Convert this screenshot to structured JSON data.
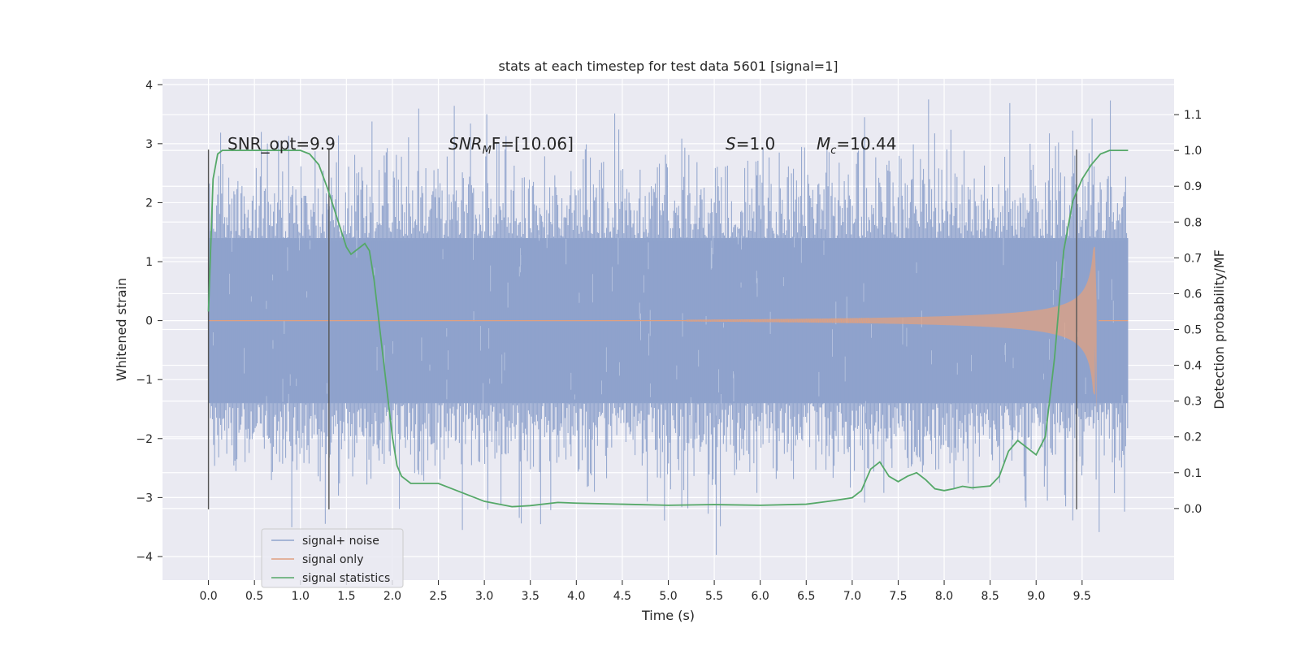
{
  "chart_data": {
    "type": "line",
    "title": "stats at each timestep for test data 5601 [signal=1]",
    "xlabel": "Time (s)",
    "ylabel": "Whitened strain",
    "y2label": "Detection probability/MF",
    "xlim": [
      -0.5,
      10.5
    ],
    "ylim": [
      -4.4,
      4.1
    ],
    "y2lim": [
      -0.2,
      1.2
    ],
    "x_ticks": [
      "0.0",
      "0.5",
      "1.0",
      "1.5",
      "2.0",
      "2.5",
      "3.0",
      "3.5",
      "4.0",
      "4.5",
      "5.0",
      "5.5",
      "6.0",
      "6.5",
      "7.0",
      "7.5",
      "8.0",
      "8.5",
      "9.0",
      "9.5"
    ],
    "y_ticks": [
      "4",
      "3",
      "2",
      "1",
      "0",
      "−1",
      "−2",
      "−3",
      "−4"
    ],
    "y2_ticks": [
      "1.1",
      "1.0",
      "0.9",
      "0.8",
      "0.7",
      "0.6",
      "0.5",
      "0.4",
      "0.3",
      "0.2",
      "0.1",
      "0.0"
    ],
    "grid": true,
    "legend_position": "bottom-left",
    "annotations": {
      "snr_opt": "SNR_opt=9.9",
      "snr_mf_base": "SNR",
      "snr_mf_sub": "M",
      "snr_mf_rest": "F=[10.06]",
      "s_var": "S",
      "s_val": "=1.0",
      "mc_base": "M",
      "mc_sub": "c",
      "mc_val": "=10.44"
    },
    "vertical_markers": [
      0.0,
      1.31,
      9.44
    ],
    "series": [
      {
        "name": "signal+ noise",
        "color": "#8fa3cc",
        "kind": "noise-band",
        "x_range": [
          0.0,
          10.0
        ],
        "core_range": [
          -1.4,
          1.4
        ],
        "max_abs_peak": 3.75
      },
      {
        "name": "signal only",
        "color": "#e0a080",
        "kind": "chirp",
        "x_start": 5.2,
        "x_peak": 9.64,
        "x_end": 9.68,
        "max_amplitude": 1.25
      },
      {
        "name": "signal statistics",
        "color": "#55a868",
        "axis": "right",
        "x": [
          0.0,
          0.05,
          0.1,
          0.15,
          0.25,
          0.5,
          0.8,
          1.0,
          1.1,
          1.2,
          1.3,
          1.4,
          1.5,
          1.55,
          1.6,
          1.7,
          1.75,
          1.8,
          1.9,
          2.0,
          2.05,
          2.1,
          2.2,
          2.3,
          2.5,
          2.7,
          3.0,
          3.3,
          3.5,
          3.8,
          4.0,
          4.5,
          5.0,
          5.5,
          6.0,
          6.5,
          6.8,
          7.0,
          7.1,
          7.2,
          7.3,
          7.4,
          7.5,
          7.6,
          7.7,
          7.8,
          7.9,
          8.0,
          8.1,
          8.2,
          8.3,
          8.5,
          8.6,
          8.7,
          8.8,
          8.9,
          9.0,
          9.1,
          9.2,
          9.3,
          9.4,
          9.5,
          9.6,
          9.7,
          9.8,
          9.9,
          10.0
        ],
        "y": [
          0.55,
          0.92,
          0.99,
          1.0,
          1.0,
          1.0,
          1.0,
          1.0,
          0.99,
          0.96,
          0.89,
          0.81,
          0.73,
          0.71,
          0.72,
          0.74,
          0.72,
          0.64,
          0.42,
          0.2,
          0.12,
          0.09,
          0.07,
          0.07,
          0.07,
          0.05,
          0.02,
          0.005,
          0.008,
          0.017,
          0.015,
          0.012,
          0.009,
          0.011,
          0.009,
          0.012,
          0.022,
          0.03,
          0.05,
          0.11,
          0.13,
          0.09,
          0.075,
          0.09,
          0.1,
          0.08,
          0.055,
          0.05,
          0.055,
          0.062,
          0.058,
          0.063,
          0.09,
          0.16,
          0.19,
          0.17,
          0.15,
          0.2,
          0.42,
          0.72,
          0.86,
          0.92,
          0.96,
          0.99,
          1.0,
          1.0,
          1.0
        ]
      }
    ]
  }
}
